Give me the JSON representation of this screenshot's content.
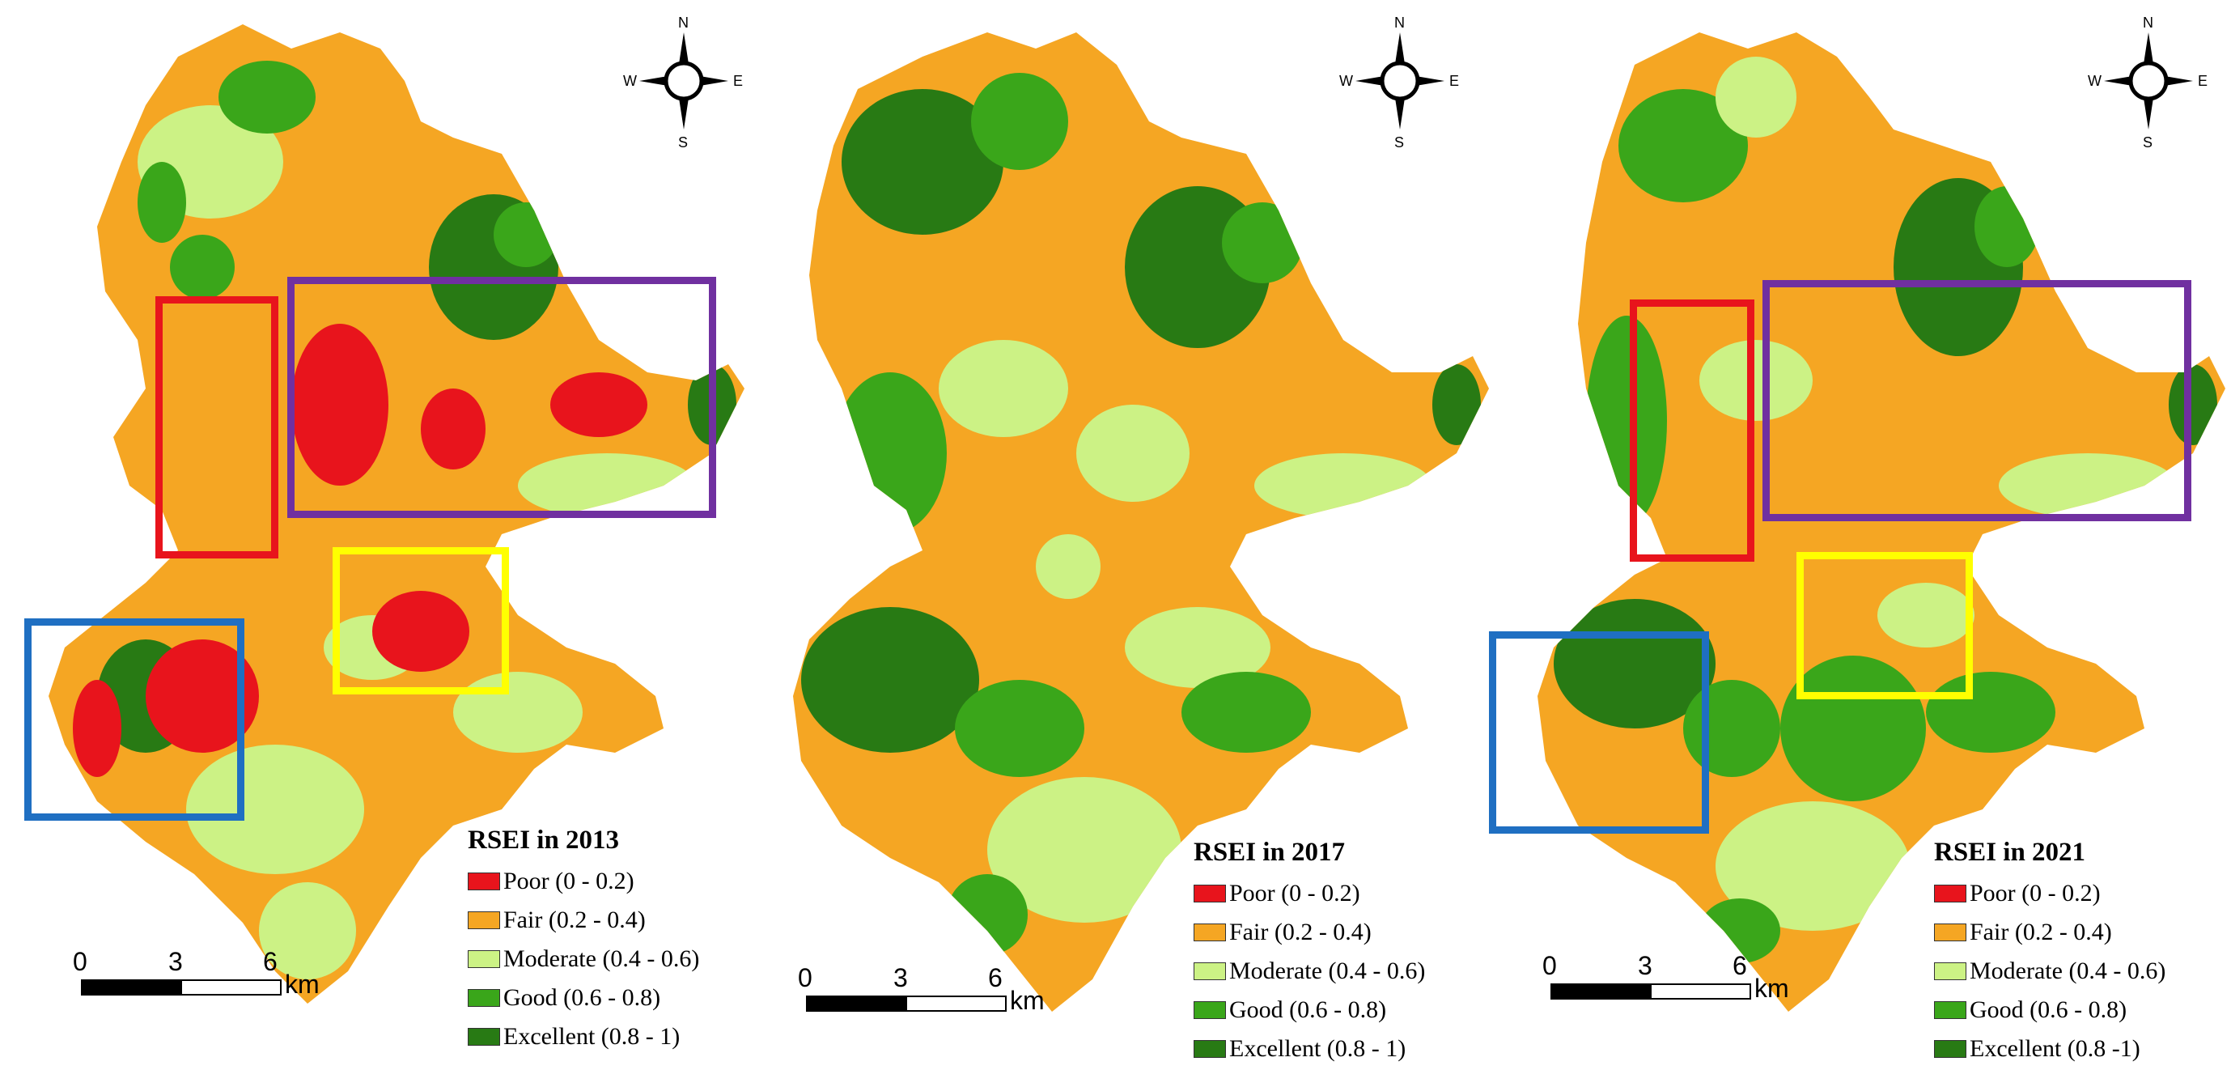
{
  "colors": {
    "poor": "#e8141c",
    "fair": "#f5a623",
    "moderate": "#ccf285",
    "good": "#3aa61a",
    "excellent": "#287a14",
    "box_red": "#e8141c",
    "box_purple": "#7030a0",
    "box_yellow": "#ffff00",
    "box_blue": "#1f6fc2"
  },
  "compass": {
    "n": "N",
    "s": "S",
    "e": "E",
    "w": "W"
  },
  "scale": {
    "ticks": [
      "0",
      "3",
      "6"
    ],
    "unit": "km"
  },
  "maps": [
    {
      "title": "RSEI in 2013",
      "legend": [
        "Poor (0 - 0.2)",
        "Fair (0.2 - 0.4)",
        "Moderate (0.4 - 0.6)",
        "Good (0.6 - 0.8)",
        "Excellent (0.8 - 1)"
      ]
    },
    {
      "title": "RSEI in 2017",
      "legend": [
        "Poor (0 - 0.2)",
        "Fair (0.2 - 0.4)",
        "Moderate (0.4 - 0.6)",
        "Good (0.6 - 0.8)",
        "Excellent (0.8 - 1)"
      ]
    },
    {
      "title": "RSEI in 2021",
      "legend": [
        "Poor (0 - 0.2)",
        "Fair (0.2 - 0.4)",
        "Moderate (0.4 - 0.6)",
        "Good (0.6 - 0.8)",
        "Excellent (0.8 -1)"
      ]
    }
  ]
}
